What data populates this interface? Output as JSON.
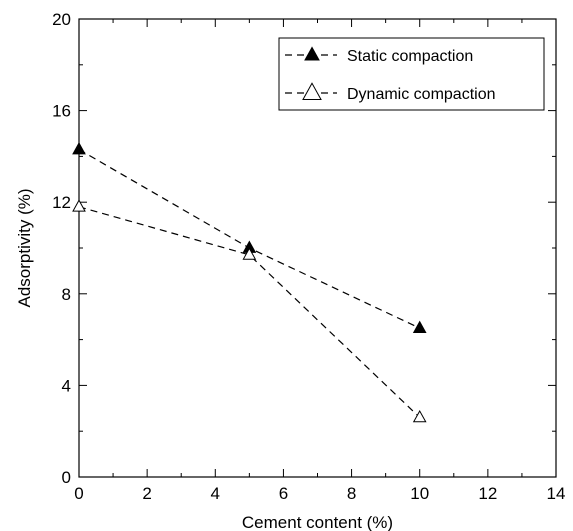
{
  "chart_data": {
    "type": "line",
    "xlabel": "Cement content (%)",
    "ylabel": "Adsorptivity (%)",
    "xlim": [
      0,
      14
    ],
    "ylim": [
      0,
      20
    ],
    "xticks": [
      "0",
      "2",
      "4",
      "6",
      "8",
      "10",
      "12",
      "14"
    ],
    "yticks": [
      "0",
      "4",
      "8",
      "12",
      "16",
      "20"
    ],
    "grid": false,
    "legend_position": "top-right",
    "x": [
      0,
      5,
      10
    ],
    "series": [
      {
        "name": "Static compaction",
        "marker": "filled-triangle",
        "line_style": "dashed",
        "values": [
          14.3,
          10.0,
          6.5
        ]
      },
      {
        "name": "Dynamic compaction",
        "marker": "open-triangle",
        "line_style": "dashed",
        "values": [
          11.8,
          9.7,
          2.6
        ]
      }
    ]
  }
}
